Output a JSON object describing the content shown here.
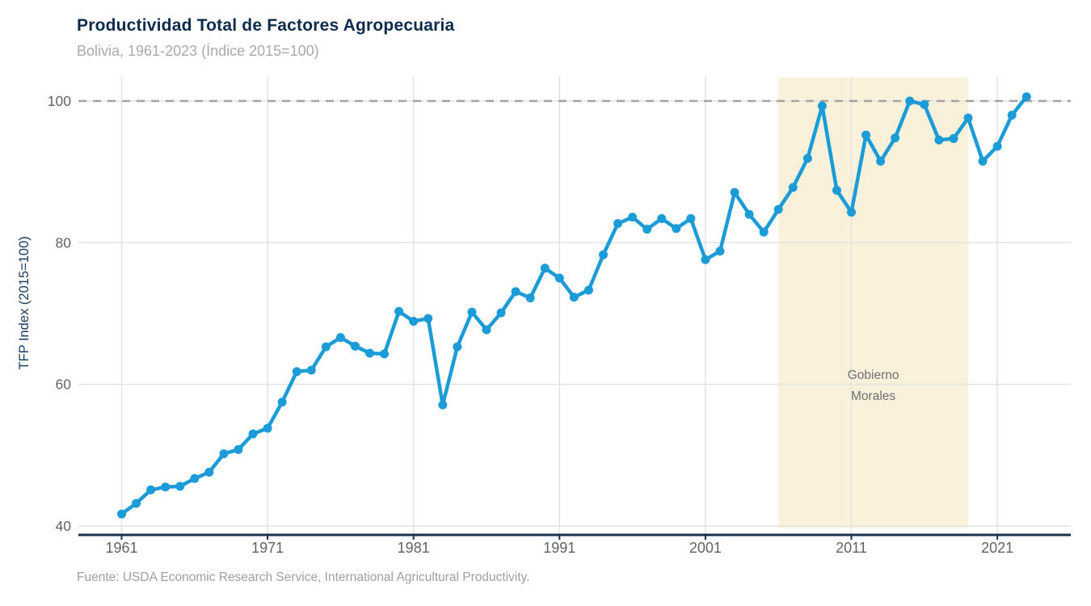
{
  "header": {
    "title": "Productividad Total de Factores Agropecuaria",
    "subtitle": "Bolivia, 1961-2023 (Índice 2015=100)"
  },
  "footer": {
    "source": "Fuente: USDA Economic Research Service, International Agricultural Productivity."
  },
  "colors": {
    "line": "#1b9bd7",
    "band": "#faf1da",
    "axis": "#16304e",
    "grid": "#e3e3e3",
    "reference": "#a3a3a3",
    "tick_text": "#5f6368",
    "annotation_text": "#6d7175",
    "ylabel_text": "#173a5e"
  },
  "chart_data": {
    "type": "line",
    "title": "Productividad Total de Factores Agropecuaria",
    "subtitle": "Bolivia, 1961-2023 (Índice 2015=100)",
    "ylabel": "TFP Index (2015=100)",
    "xlabel": "",
    "x": [
      1961,
      1962,
      1963,
      1964,
      1965,
      1966,
      1967,
      1968,
      1969,
      1970,
      1971,
      1972,
      1973,
      1974,
      1975,
      1976,
      1977,
      1978,
      1979,
      1980,
      1981,
      1982,
      1983,
      1984,
      1985,
      1986,
      1987,
      1988,
      1989,
      1990,
      1991,
      1992,
      1993,
      1994,
      1995,
      1996,
      1997,
      1998,
      1999,
      2000,
      2001,
      2002,
      2003,
      2004,
      2005,
      2006,
      2007,
      2008,
      2009,
      2010,
      2011,
      2012,
      2013,
      2014,
      2015,
      2016,
      2017,
      2018,
      2019,
      2020,
      2021,
      2022,
      2023
    ],
    "values": [
      41.7,
      43.2,
      45.1,
      45.5,
      45.6,
      46.7,
      47.6,
      50.2,
      50.8,
      53.0,
      53.8,
      57.5,
      61.8,
      62.0,
      65.3,
      66.6,
      65.4,
      64.4,
      64.3,
      70.3,
      68.9,
      69.3,
      57.1,
      65.3,
      70.2,
      67.7,
      70.1,
      73.1,
      72.2,
      76.4,
      75.0,
      72.3,
      73.3,
      78.3,
      82.7,
      83.6,
      81.9,
      83.4,
      82.0,
      83.4,
      77.6,
      78.8,
      87.1,
      84.0,
      81.5,
      84.7,
      87.8,
      91.9,
      99.3,
      87.4,
      84.3,
      95.2,
      91.5,
      94.8,
      100.0,
      99.5,
      94.5,
      94.7,
      97.6,
      91.5,
      93.6,
      98.0,
      100.6
    ],
    "x_ticks": [
      1961,
      1971,
      1981,
      1991,
      2001,
      2011,
      2021
    ],
    "y_ticks": [
      40,
      60,
      80,
      100
    ],
    "ylim": [
      38.6,
      103.4
    ],
    "xlim": [
      1958,
      2026.2
    ],
    "grid": true,
    "legend": "none",
    "reference_line": {
      "value": 100,
      "style": "dashed"
    },
    "shaded_region": {
      "x_start": 2006,
      "x_end": 2019,
      "label_lines": [
        "Gobierno",
        "Morales"
      ]
    }
  }
}
